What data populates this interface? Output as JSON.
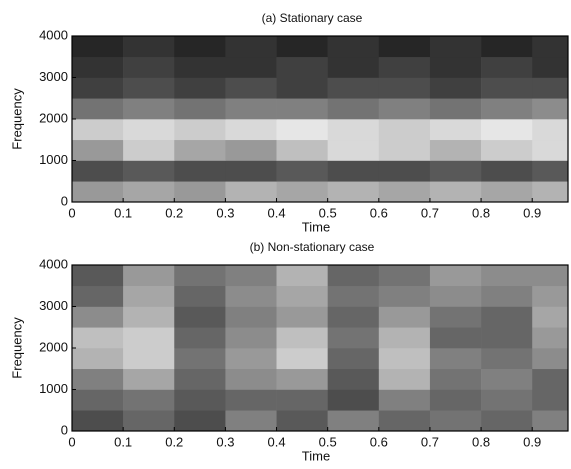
{
  "chart_data": [
    {
      "type": "heatmap",
      "title": "(a) Stationary case",
      "xlabel": "Time",
      "ylabel": "Frequency",
      "xlim": [
        0,
        0.97
      ],
      "ylim": [
        0,
        4000
      ],
      "xticks": [
        0,
        0.1,
        0.2,
        0.3,
        0.4,
        0.5,
        0.6,
        0.7,
        0.8,
        0.9
      ],
      "yticks": [
        0,
        1000,
        2000,
        3000,
        4000
      ],
      "xbins": [
        0,
        0.1,
        0.2,
        0.3,
        0.4,
        0.5,
        0.6,
        0.7,
        0.8,
        0.9,
        0.97
      ],
      "ybins": [
        0,
        500,
        1000,
        1500,
        2000,
        2500,
        3000,
        3500,
        4000
      ],
      "colormap": "gray_r",
      "values": [
        [
          0.4,
          0.35,
          0.4,
          0.3,
          0.35,
          0.3,
          0.35,
          0.3,
          0.35,
          0.3
        ],
        [
          0.7,
          0.65,
          0.7,
          0.7,
          0.65,
          0.7,
          0.7,
          0.65,
          0.7,
          0.65
        ],
        [
          0.4,
          0.2,
          0.35,
          0.4,
          0.25,
          0.15,
          0.2,
          0.3,
          0.2,
          0.15
        ],
        [
          0.2,
          0.15,
          0.2,
          0.15,
          0.1,
          0.15,
          0.2,
          0.15,
          0.1,
          0.15
        ],
        [
          0.55,
          0.5,
          0.55,
          0.5,
          0.5,
          0.55,
          0.5,
          0.55,
          0.5,
          0.45
        ],
        [
          0.75,
          0.7,
          0.75,
          0.7,
          0.75,
          0.7,
          0.7,
          0.75,
          0.7,
          0.7
        ],
        [
          0.8,
          0.75,
          0.8,
          0.8,
          0.75,
          0.8,
          0.75,
          0.8,
          0.75,
          0.8
        ],
        [
          0.85,
          0.8,
          0.85,
          0.8,
          0.85,
          0.8,
          0.85,
          0.8,
          0.85,
          0.8
        ]
      ]
    },
    {
      "type": "heatmap",
      "title": "(b) Non-stationary case",
      "xlabel": "Time",
      "ylabel": "Frequency",
      "xlim": [
        0,
        0.97
      ],
      "ylim": [
        0,
        4000
      ],
      "xticks": [
        0,
        0.1,
        0.2,
        0.3,
        0.4,
        0.5,
        0.6,
        0.7,
        0.8,
        0.9
      ],
      "yticks": [
        0,
        1000,
        2000,
        3000,
        4000
      ],
      "xbins": [
        0,
        0.1,
        0.2,
        0.3,
        0.4,
        0.5,
        0.6,
        0.7,
        0.8,
        0.9,
        0.97
      ],
      "ybins": [
        0,
        500,
        1000,
        1500,
        2000,
        2500,
        3000,
        3500,
        4000
      ],
      "colormap": "gray_r",
      "values": [
        [
          0.7,
          0.6,
          0.7,
          0.5,
          0.65,
          0.5,
          0.6,
          0.55,
          0.6,
          0.5
        ],
        [
          0.6,
          0.55,
          0.65,
          0.6,
          0.6,
          0.7,
          0.5,
          0.6,
          0.55,
          0.6
        ],
        [
          0.5,
          0.35,
          0.6,
          0.45,
          0.4,
          0.65,
          0.3,
          0.55,
          0.5,
          0.6
        ],
        [
          0.3,
          0.2,
          0.55,
          0.4,
          0.2,
          0.6,
          0.25,
          0.5,
          0.55,
          0.45
        ],
        [
          0.25,
          0.2,
          0.6,
          0.45,
          0.25,
          0.55,
          0.3,
          0.6,
          0.6,
          0.4
        ],
        [
          0.45,
          0.3,
          0.65,
          0.5,
          0.4,
          0.6,
          0.4,
          0.55,
          0.6,
          0.35
        ],
        [
          0.6,
          0.35,
          0.6,
          0.45,
          0.35,
          0.55,
          0.5,
          0.45,
          0.5,
          0.4
        ],
        [
          0.65,
          0.4,
          0.55,
          0.5,
          0.3,
          0.6,
          0.55,
          0.4,
          0.45,
          0.45
        ]
      ]
    }
  ]
}
